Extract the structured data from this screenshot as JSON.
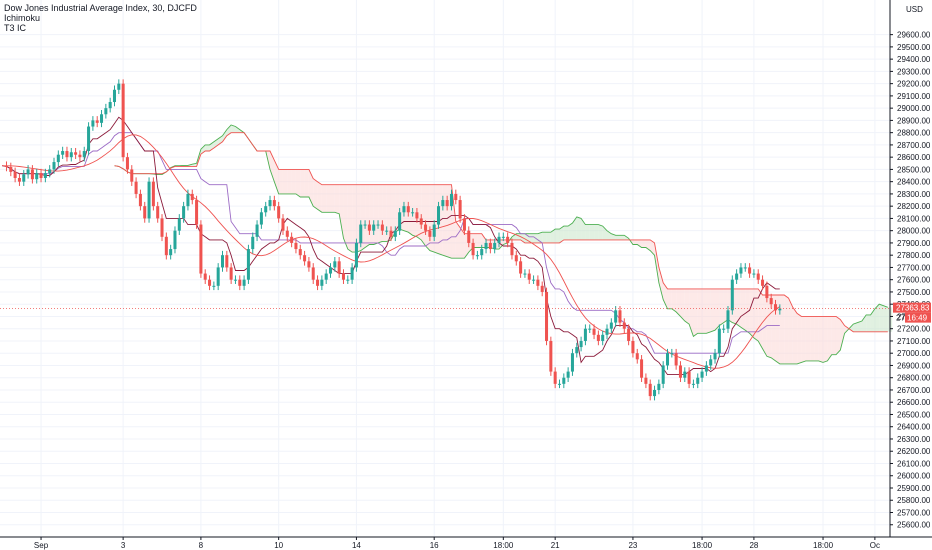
{
  "legend": {
    "title": "Dow Jones Industrial Average Index, 30, DJCFD",
    "indicator1": "Ichimoku",
    "indicator2": "T3 IC"
  },
  "currency": "USD",
  "price_label": "27363.83",
  "countdown_prefix": "27",
  "countdown": "16:49",
  "colors": {
    "up": "#26a69a",
    "down": "#ef5350",
    "price_tag": "#ef5350",
    "cloud_bull": "#c8e6c9",
    "cloud_bear": "#fbd7d6",
    "span_a": "#4caf50",
    "span_b": "#ef5350",
    "conversion": "#8b1a3a",
    "base": "#9c6bc5"
  },
  "chart_data": {
    "type": "candlestick",
    "title": "Dow Jones Industrial Average Index, 30, DJCFD",
    "ylim": [
      25500,
      29850
    ],
    "y_ticks": [
      25600,
      25700,
      25800,
      25900,
      26000,
      26100,
      26200,
      26300,
      26400,
      26500,
      26600,
      26700,
      26800,
      26900,
      27000,
      27100,
      27200,
      27300,
      27400,
      27500,
      27600,
      27700,
      27800,
      27900,
      28000,
      28100,
      28200,
      28300,
      28400,
      28500,
      28600,
      28700,
      28800,
      28900,
      29000,
      29100,
      29200,
      29300,
      29400,
      29500,
      29600
    ],
    "y_tick_labels": [
      "25600.00",
      "25700.00",
      "25800.00",
      "25900.00",
      "26000.00",
      "26100.00",
      "26200.00",
      "26300.00",
      "26400.00",
      "26500.00",
      "26600.00",
      "26700.00",
      "26800.00",
      "26900.00",
      "27000.00",
      "27100.00",
      "27200.00",
      "27300.00",
      "27400.00",
      "27500.00",
      "27600.00",
      "27700.00",
      "27800.00",
      "27900.00",
      "28000.00",
      "28100.00",
      "28200.00",
      "28300.00",
      "28400.00",
      "28500.00",
      "28600.00",
      "28700.00",
      "28800.00",
      "28900.00",
      "29000.00",
      "29100.00",
      "29200.00",
      "29300.00",
      "29400.00",
      "29500.00",
      "29600.00"
    ],
    "x_labels": [
      {
        "label": "Sep",
        "index": 9
      },
      {
        "label": "3",
        "index": 28
      },
      {
        "label": "8",
        "index": 46
      },
      {
        "label": "10",
        "index": 64
      },
      {
        "label": "14",
        "index": 82
      },
      {
        "label": "16",
        "index": 100
      },
      {
        "label": "18:00",
        "index": 116
      },
      {
        "label": "21",
        "index": 128
      },
      {
        "label": "23",
        "index": 146
      },
      {
        "label": "18:00",
        "index": 162
      },
      {
        "label": "28",
        "index": 174
      },
      {
        "label": "18:00",
        "index": 190
      },
      {
        "label": "Oc",
        "index": 202
      }
    ],
    "visible_bars": 206,
    "last_price": 27363.83,
    "price_series": [
      28530,
      28520,
      28480,
      28430,
      28400,
      28460,
      28500,
      28420,
      28470,
      28430,
      28470,
      28500,
      28560,
      28620,
      28650,
      28600,
      28640,
      28620,
      28600,
      28650,
      28850,
      28900,
      28880,
      28950,
      29000,
      29050,
      29150,
      29200,
      28600,
      28500,
      28400,
      28300,
      28200,
      28100,
      28400,
      28200,
      28100,
      27950,
      27800,
      27850,
      28000,
      28100,
      28200,
      28300,
      28250,
      28050,
      27650,
      27600,
      27550,
      27550,
      27700,
      27800,
      27700,
      27600,
      27600,
      27550,
      27600,
      27850,
      27950,
      28050,
      28150,
      28200,
      28250,
      28200,
      28100,
      28000,
      27950,
      27900,
      27850,
      27800,
      27750,
      27700,
      27600,
      27550,
      27600,
      27650,
      27700,
      27750,
      27650,
      27600,
      27600,
      27700,
      27900,
      28050,
      28050,
      28000,
      28050,
      28050,
      28000,
      28000,
      27950,
      28000,
      28150,
      28200,
      28150,
      28150,
      28100,
      28050,
      28000,
      27950,
      28050,
      28200,
      28250,
      28200,
      28300,
      28250,
      28100,
      28000,
      27900,
      27800,
      27800,
      27850,
      27900,
      27850,
      27900,
      27950,
      27950,
      27900,
      27800,
      27750,
      27650,
      27650,
      27600,
      27600,
      27550,
      27500,
      27100,
      26850,
      26750,
      26750,
      26800,
      26850,
      27000,
      27050,
      27100,
      27200,
      27200,
      27150,
      27100,
      27150,
      27200,
      27250,
      27350,
      27250,
      27200,
      27100,
      27000,
      26950,
      26800,
      26750,
      26650,
      26700,
      26750,
      26900,
      27000,
      27000,
      26900,
      26800,
      26850,
      26750,
      26750,
      26800,
      26850,
      26900,
      26950,
      27000,
      27200,
      27200,
      27350,
      27600,
      27650,
      27700,
      27700,
      27650,
      27650,
      27600,
      27550,
      27450,
      27400,
      27350,
      27363.83
    ]
  }
}
